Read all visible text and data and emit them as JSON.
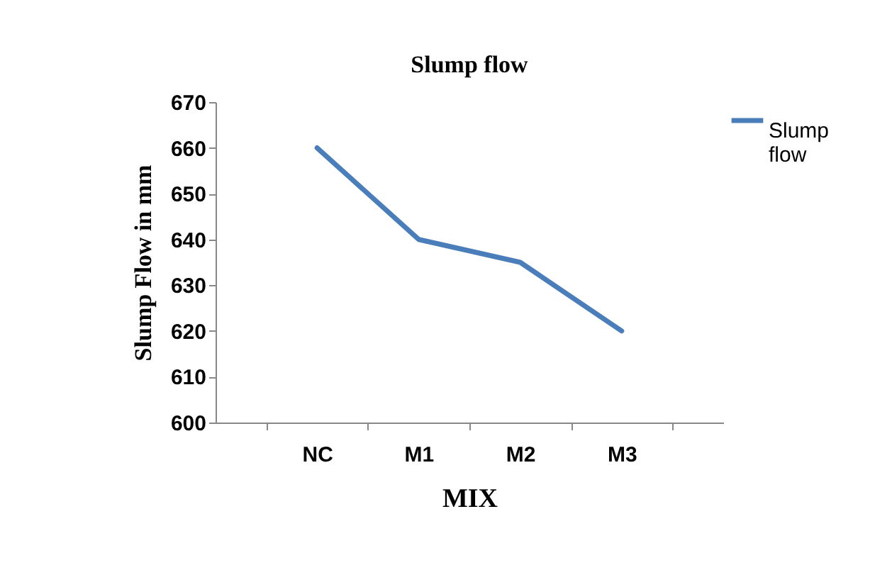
{
  "chart_data": {
    "type": "line",
    "title": "Slump flow",
    "xlabel": "MIX",
    "ylabel": "Slump Flow in mm",
    "categories": [
      "NC",
      "M1",
      "M2",
      "M3"
    ],
    "series": [
      {
        "name": "Slump flow",
        "color": "#4a7ebb",
        "values": [
          660,
          640,
          635,
          620
        ]
      }
    ],
    "ylim": [
      600,
      670
    ],
    "yticks": [
      600,
      610,
      620,
      630,
      640,
      650,
      660,
      670
    ],
    "grid": false,
    "legend": "right",
    "marker": "none",
    "line_style": "solid"
  }
}
